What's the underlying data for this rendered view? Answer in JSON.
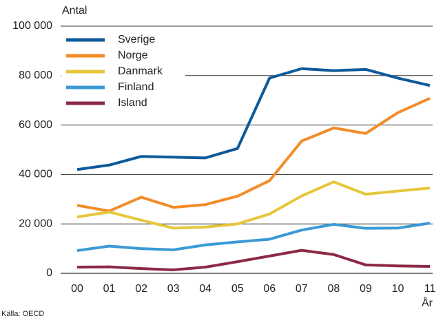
{
  "chart_data": {
    "type": "line",
    "y_label": "Antal",
    "x_label": "År",
    "source": "Källa: OECD",
    "categories": [
      "00",
      "01",
      "02",
      "03",
      "04",
      "05",
      "06",
      "07",
      "08",
      "09",
      "10",
      "11"
    ],
    "series": [
      {
        "name": "Sverige",
        "color": "#0d5a9a",
        "values": [
          42000,
          43800,
          47300,
          47000,
          46700,
          50500,
          79000,
          82800,
          82000,
          82500,
          79000,
          76000
        ]
      },
      {
        "name": "Norge",
        "color": "#f28c28",
        "values": [
          27500,
          25200,
          30800,
          26700,
          27800,
          31200,
          37500,
          53500,
          58800,
          56600,
          65000,
          70800
        ]
      },
      {
        "name": "Danmark",
        "color": "#e6c73c",
        "values": [
          22800,
          24800,
          21500,
          18300,
          18700,
          20000,
          24000,
          31300,
          37000,
          32000,
          33300,
          34500
        ]
      },
      {
        "name": "Finland",
        "color": "#3b9ad6",
        "values": [
          9200,
          11000,
          10000,
          9500,
          11500,
          12700,
          13800,
          17500,
          19800,
          18200,
          18300,
          20300
        ]
      },
      {
        "name": "Island",
        "color": "#8c2a45",
        "values": [
          2500,
          2600,
          1900,
          1400,
          2500,
          4700,
          7000,
          9300,
          7600,
          3400,
          3000,
          2800
        ]
      }
    ],
    "ylim": [
      0,
      100000
    ],
    "yticks": [
      0,
      {
        "value": 20000,
        "label": "20 000"
      },
      {
        "value": 40000,
        "label": "40 000"
      },
      {
        "value": 60000,
        "label": "60 000"
      },
      {
        "value": 80000,
        "label": "80 000"
      },
      {
        "value": 100000,
        "label": "100 000"
      }
    ],
    "grid": true,
    "legend": "top-left"
  }
}
